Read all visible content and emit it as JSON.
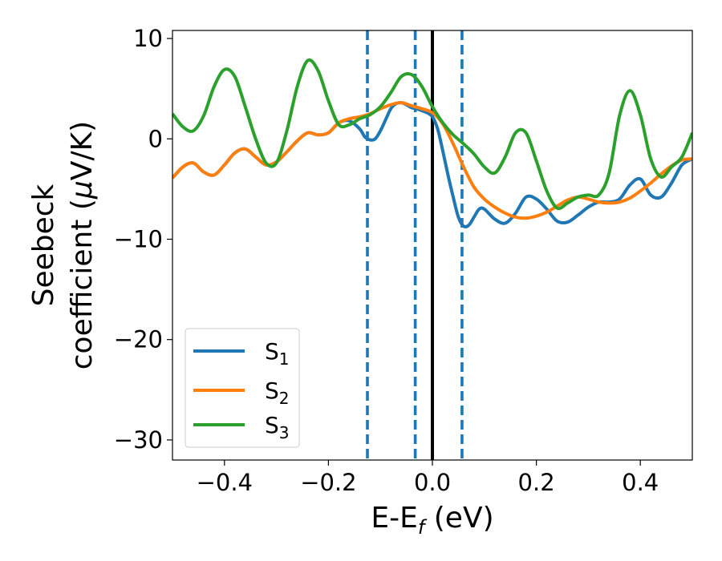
{
  "chart_data": {
    "type": "line",
    "xlabel": {
      "main": "E-E",
      "sub": "f",
      "unit": " (eV)"
    },
    "ylabel": {
      "line1": "Seebeck",
      "line2_pre": "coefficient  (",
      "line2_mu": "μ",
      "line2_post": "V/K)"
    },
    "xlim": [
      -0.5,
      0.5
    ],
    "ylim": [
      -32,
      10.8
    ],
    "xticks": [
      -0.4,
      -0.2,
      0.0,
      0.2,
      0.4
    ],
    "xtick_labels": [
      "−0.4",
      "−0.2",
      "0.0",
      "0.2",
      "0.4"
    ],
    "yticks": [
      10,
      0,
      -10,
      -20,
      -30
    ],
    "ytick_labels": [
      "10",
      "0",
      "−10",
      "−20",
      "−30"
    ],
    "vlines": [
      {
        "x": -0.125,
        "style": "dashed",
        "color": "#1f77b4"
      },
      {
        "x": -0.033,
        "style": "dashed",
        "color": "#1f77b4"
      },
      {
        "x": 0.0,
        "style": "solid",
        "color": "#000000"
      },
      {
        "x": 0.057,
        "style": "dashed",
        "color": "#1f77b4"
      }
    ],
    "legend": {
      "position": "lower-left",
      "entries": [
        {
          "base": "S",
          "sub": "1",
          "color": "#1f77b4"
        },
        {
          "base": "S",
          "sub": "2",
          "color": "#ff7f0e"
        },
        {
          "base": "S",
          "sub": "3",
          "color": "#2ca02c"
        }
      ]
    },
    "series": [
      {
        "label": "S1",
        "color": "#1f77b4",
        "x": [
          -0.5,
          -0.48,
          -0.46,
          -0.44,
          -0.42,
          -0.4,
          -0.38,
          -0.36,
          -0.34,
          -0.32,
          -0.3,
          -0.28,
          -0.26,
          -0.24,
          -0.22,
          -0.2,
          -0.18,
          -0.16,
          -0.14,
          -0.13,
          -0.12,
          -0.11,
          -0.1,
          -0.09,
          -0.08,
          -0.07,
          -0.06,
          -0.05,
          -0.04,
          -0.03,
          -0.02,
          -0.01,
          0.0,
          0.01,
          0.02,
          0.03,
          0.04,
          0.05,
          0.06,
          0.07,
          0.08,
          0.09,
          0.1,
          0.12,
          0.14,
          0.16,
          0.18,
          0.2,
          0.22,
          0.24,
          0.26,
          0.28,
          0.3,
          0.32,
          0.34,
          0.36,
          0.38,
          0.4,
          0.42,
          0.44,
          0.46,
          0.48,
          0.5
        ],
        "y": [
          -3.9,
          -2.8,
          -2.4,
          -3.3,
          -3.6,
          -2.6,
          -1.4,
          -1.0,
          -1.8,
          -2.6,
          -2.3,
          -1.3,
          -0.2,
          0.6,
          0.4,
          0.6,
          1.6,
          1.8,
          1.0,
          0.2,
          -0.1,
          0.0,
          0.8,
          1.9,
          3.0,
          3.5,
          3.6,
          3.4,
          3.1,
          3.0,
          2.8,
          2.6,
          2.2,
          1.0,
          -1.2,
          -3.6,
          -5.8,
          -7.8,
          -8.7,
          -8.6,
          -7.8,
          -7.0,
          -7.0,
          -8.0,
          -8.4,
          -7.4,
          -5.8,
          -6.0,
          -7.0,
          -8.2,
          -8.3,
          -7.6,
          -6.8,
          -6.3,
          -6.3,
          -6.0,
          -4.6,
          -4.0,
          -5.6,
          -5.8,
          -4.4,
          -2.6,
          -2.0
        ]
      },
      {
        "label": "S2",
        "color": "#ff7f0e",
        "x": [
          -0.5,
          -0.48,
          -0.46,
          -0.44,
          -0.42,
          -0.4,
          -0.38,
          -0.36,
          -0.34,
          -0.32,
          -0.3,
          -0.28,
          -0.26,
          -0.24,
          -0.22,
          -0.2,
          -0.18,
          -0.16,
          -0.14,
          -0.12,
          -0.1,
          -0.08,
          -0.06,
          -0.04,
          -0.02,
          0.0,
          0.02,
          0.04,
          0.06,
          0.08,
          0.1,
          0.12,
          0.14,
          0.16,
          0.18,
          0.2,
          0.22,
          0.24,
          0.26,
          0.28,
          0.3,
          0.32,
          0.34,
          0.36,
          0.38,
          0.4,
          0.42,
          0.44,
          0.46,
          0.48,
          0.5
        ],
        "y": [
          -3.9,
          -2.8,
          -2.4,
          -3.3,
          -3.6,
          -2.6,
          -1.4,
          -1.0,
          -1.8,
          -2.6,
          -2.3,
          -1.3,
          -0.2,
          0.6,
          0.4,
          0.6,
          1.6,
          2.0,
          2.2,
          2.5,
          3.0,
          3.4,
          3.6,
          3.3,
          3.0,
          2.6,
          1.5,
          -0.5,
          -2.8,
          -4.8,
          -6.0,
          -6.8,
          -7.4,
          -7.8,
          -7.9,
          -7.7,
          -7.3,
          -6.7,
          -6.1,
          -5.8,
          -6.0,
          -6.3,
          -6.4,
          -6.3,
          -5.9,
          -5.2,
          -4.4,
          -3.5,
          -2.7,
          -2.1,
          -2.0
        ]
      },
      {
        "label": "S3",
        "color": "#2ca02c",
        "x": [
          -0.5,
          -0.48,
          -0.46,
          -0.44,
          -0.42,
          -0.4,
          -0.38,
          -0.36,
          -0.34,
          -0.32,
          -0.3,
          -0.28,
          -0.26,
          -0.24,
          -0.22,
          -0.2,
          -0.18,
          -0.16,
          -0.14,
          -0.12,
          -0.1,
          -0.08,
          -0.06,
          -0.04,
          -0.02,
          0.0,
          0.02,
          0.04,
          0.06,
          0.08,
          0.1,
          0.12,
          0.14,
          0.16,
          0.18,
          0.2,
          0.22,
          0.24,
          0.26,
          0.28,
          0.3,
          0.32,
          0.34,
          0.36,
          0.38,
          0.4,
          0.42,
          0.44,
          0.46,
          0.48,
          0.5
        ],
        "y": [
          2.5,
          1.2,
          0.8,
          2.3,
          5.2,
          6.9,
          6.2,
          3.2,
          0.0,
          -2.4,
          -2.4,
          0.8,
          5.2,
          7.8,
          6.8,
          3.8,
          1.4,
          1.4,
          2.0,
          2.4,
          3.2,
          4.6,
          6.2,
          6.4,
          5.2,
          3.2,
          1.6,
          0.4,
          -0.5,
          -1.5,
          -2.8,
          -3.4,
          -1.8,
          0.6,
          0.6,
          -2.2,
          -5.2,
          -6.9,
          -6.4,
          -5.8,
          -5.6,
          -5.6,
          -3.4,
          2.3,
          4.8,
          2.4,
          -2.0,
          -3.8,
          -2.8,
          -1.8,
          0.6
        ]
      }
    ]
  }
}
